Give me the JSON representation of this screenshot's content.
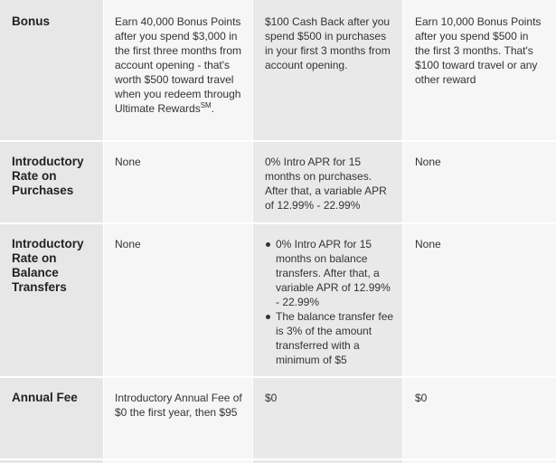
{
  "rows": {
    "bonus": {
      "label": "Bonus",
      "col1_before": "Earn 40,000 Bonus Points after you spend $3,000 in the first three months from account opening - that's worth $500 toward travel when you redeem through Ultimate Rewards",
      "col1_sup": "SM",
      "col1_after": ".",
      "col2": "$100 Cash Back after you spend $500 in purchases in your first 3 months from account opening.",
      "col3": "Earn 10,000 Bonus Points after you spend $500 in the first 3 months. That's $100 toward travel or any other reward"
    },
    "intro_purchases": {
      "label": "Introductory Rate on Purchases",
      "col1": "None",
      "col2": "0% Intro APR for 15 months on purchases. After that, a variable APR of 12.99% - 22.99%",
      "col3": "None"
    },
    "intro_balance": {
      "label": "Introductory Rate on Balance Transfers",
      "col1": "None",
      "col2_items": [
        "0% Intro APR for 15 months on balance transfers. After that, a variable APR of 12.99% - 22.99%",
        "The balance transfer fee is 3% of the amount transferred with a minimum of $5"
      ],
      "col3": "None"
    },
    "annual_fee": {
      "label": "Annual Fee",
      "col1": "Introductory Annual Fee of $0 the first year, then $95",
      "col2": "$0",
      "col3": "$0"
    }
  }
}
